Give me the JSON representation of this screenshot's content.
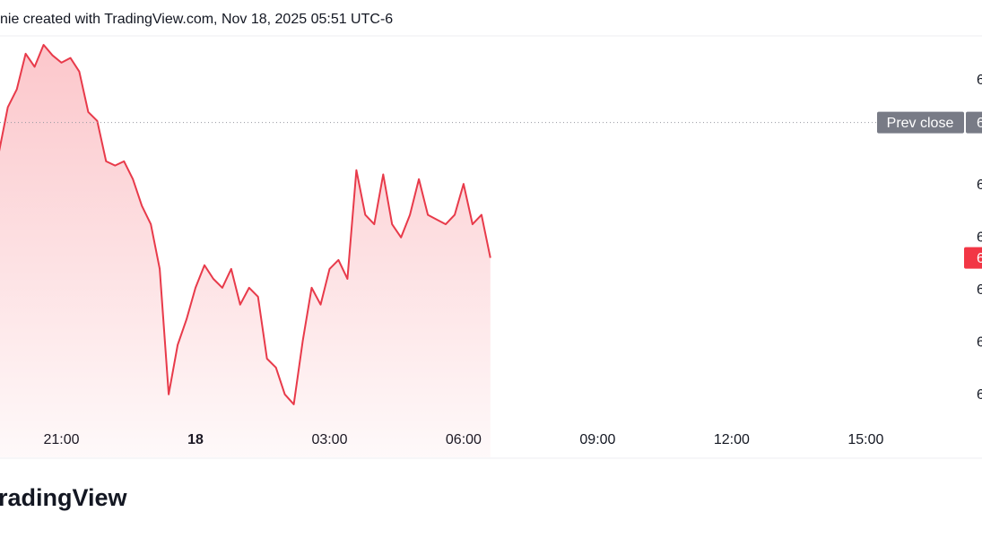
{
  "header": {
    "text": "nie created with TradingView.com, Nov 18, 2025 05:51 UTC-6"
  },
  "chart_data": {
    "type": "line",
    "x": [
      -4.4,
      -4.2,
      -4.0,
      -3.8,
      -3.6,
      -3.4,
      -3.2,
      -3.0,
      -2.8,
      -2.6,
      -2.4,
      -2.2,
      -2.0,
      -1.8,
      -1.6,
      -1.4,
      -1.2,
      -1.0,
      -0.8,
      -0.6,
      -0.4,
      -0.2,
      0.0,
      0.2,
      0.4,
      0.6,
      0.8,
      1.0,
      1.2,
      1.4,
      1.6,
      1.8,
      2.0,
      2.2,
      2.4,
      2.6,
      2.8,
      3.0,
      3.2,
      3.4,
      3.6,
      3.8,
      4.0,
      4.2,
      4.4,
      4.6,
      4.8,
      5.0,
      5.2,
      5.4,
      5.6,
      5.8,
      6.0,
      6.2,
      6.4,
      6.6
    ],
    "series": [
      {
        "color": "#e83a4a",
        "values": [
          4.63,
          5.49,
          5.83,
          6.51,
          6.26,
          6.68,
          6.48,
          6.34,
          6.43,
          6.17,
          5.4,
          5.23,
          4.46,
          4.38,
          4.46,
          4.12,
          3.61,
          3.26,
          2.41,
          0.02,
          0.96,
          1.45,
          2.05,
          2.48,
          2.22,
          2.05,
          2.41,
          1.73,
          2.05,
          1.88,
          0.7,
          0.53,
          0.02,
          -0.17,
          1.04,
          2.05,
          1.73,
          2.41,
          2.58,
          2.22,
          4.29,
          3.44,
          3.26,
          4.21,
          3.26,
          3.01,
          3.44,
          4.12,
          3.44,
          3.35,
          3.26,
          3.44,
          4.03,
          3.26,
          3.44,
          2.62
        ]
      }
    ],
    "xlim": [
      -4.375,
      17.1
    ],
    "xticks": [
      {
        "value": -3,
        "label": "21:00"
      },
      {
        "value": 0,
        "label": "18"
      },
      {
        "value": 3,
        "label": "03:00"
      },
      {
        "value": 6,
        "label": "06:00"
      },
      {
        "value": 9,
        "label": "09:00"
      },
      {
        "value": 12,
        "label": "12:00"
      },
      {
        "value": 15,
        "label": "15:00"
      }
    ],
    "ylim": [
      -1.18,
      6.85
    ],
    "yticks": [
      {
        "value": 0,
        "label": "6"
      },
      {
        "value": 1,
        "label": "6"
      },
      {
        "value": 2,
        "label": "6"
      },
      {
        "value": 3,
        "label": "6"
      },
      {
        "value": 4,
        "label": "6"
      },
      {
        "value": 6,
        "label": "6"
      }
    ],
    "prev_close": {
      "value": 5.2,
      "label": "Prev close",
      "price_label": "6"
    },
    "last_price_label": "6",
    "last_color": "#f23645"
  },
  "footer": {
    "logo": "TradingView"
  }
}
